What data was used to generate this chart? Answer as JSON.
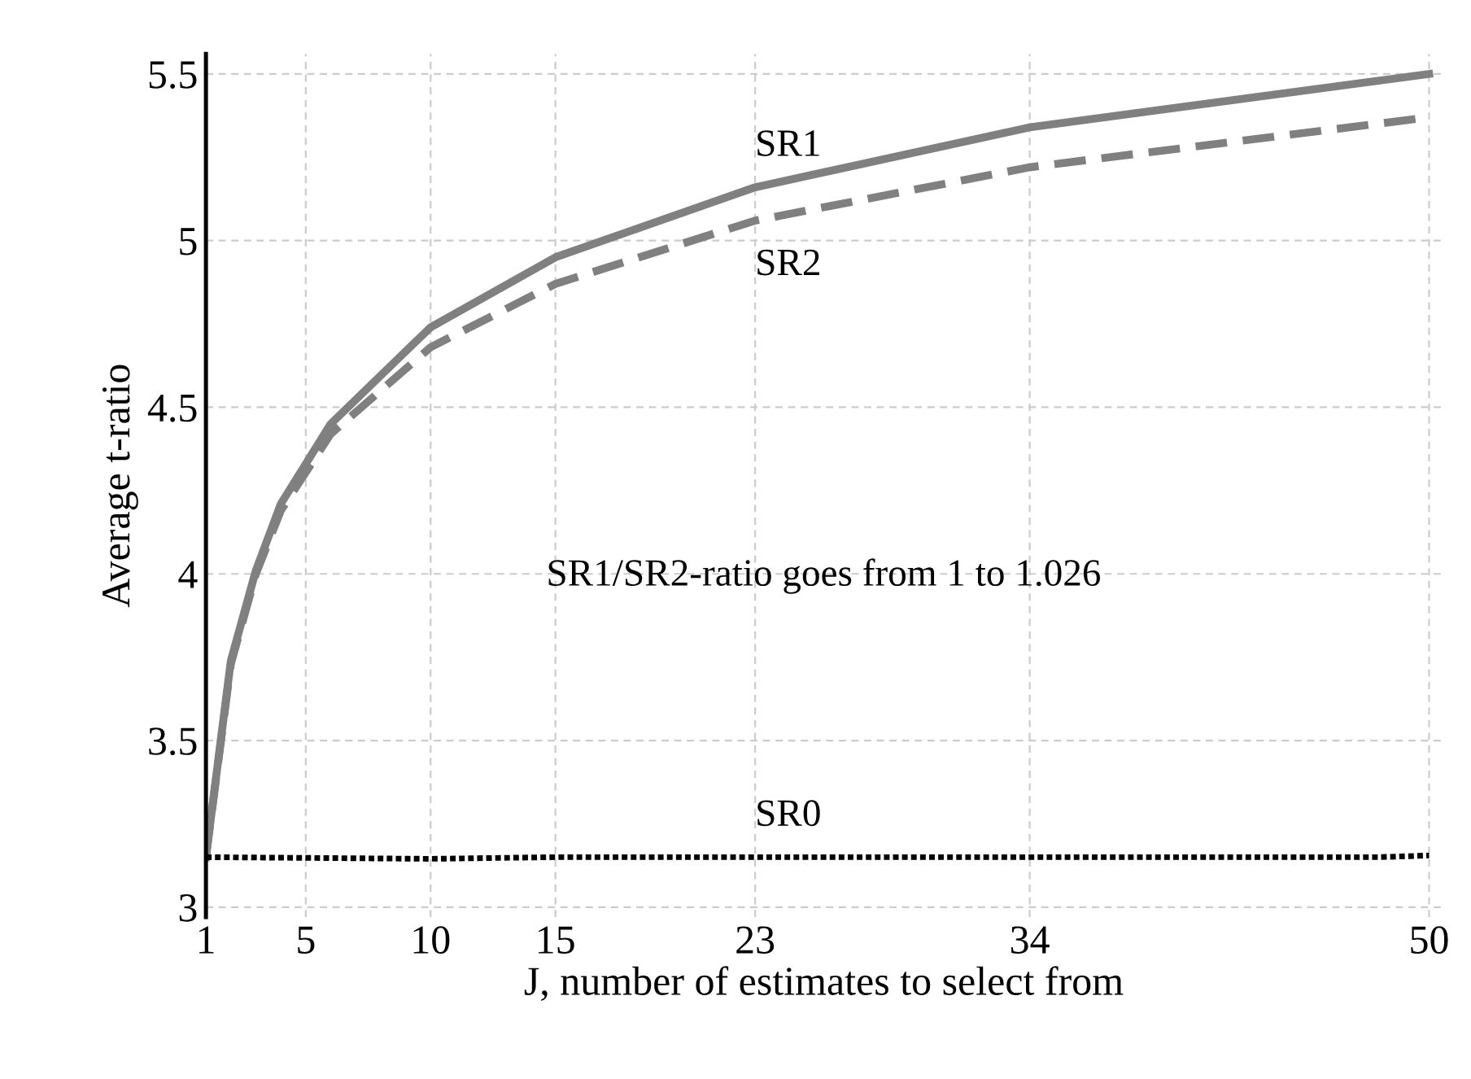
{
  "chart_data": {
    "type": "line",
    "xlabel": "J, number of estimates to select from",
    "ylabel": "Average t-ratio",
    "xlim": [
      1,
      50.5
    ],
    "ylim": [
      2.97,
      5.56
    ],
    "xticks": [
      1,
      5,
      10,
      15,
      23,
      34,
      50
    ],
    "yticks": [
      3,
      3.5,
      4,
      4.5,
      5,
      5.5
    ],
    "grid": true,
    "marker": "none",
    "series": [
      {
        "name": "SR1",
        "color": "#808080",
        "line_style": "solid",
        "x": [
          1,
          2,
          3,
          4,
          6,
          10,
          15,
          23,
          34,
          50
        ],
        "values": [
          3.15,
          3.74,
          4.01,
          4.21,
          4.45,
          4.74,
          4.95,
          5.16,
          5.34,
          5.5
        ]
      },
      {
        "name": "SR2",
        "color": "#808080",
        "line_style": "dashed",
        "x": [
          1,
          2,
          3,
          4,
          6,
          10,
          15,
          23,
          34,
          50
        ],
        "values": [
          3.15,
          3.73,
          4.0,
          4.19,
          4.42,
          4.68,
          4.87,
          5.06,
          5.22,
          5.37
        ]
      },
      {
        "name": "SR0",
        "color": "#000000",
        "line_style": "dotted",
        "x": [
          1,
          10,
          15,
          23,
          34,
          48,
          50
        ],
        "values": [
          3.15,
          3.145,
          3.15,
          3.15,
          3.15,
          3.15,
          3.155
        ]
      }
    ],
    "annotations": [
      "SR1/SR2-ratio goes from 1 to 1.026"
    ]
  }
}
